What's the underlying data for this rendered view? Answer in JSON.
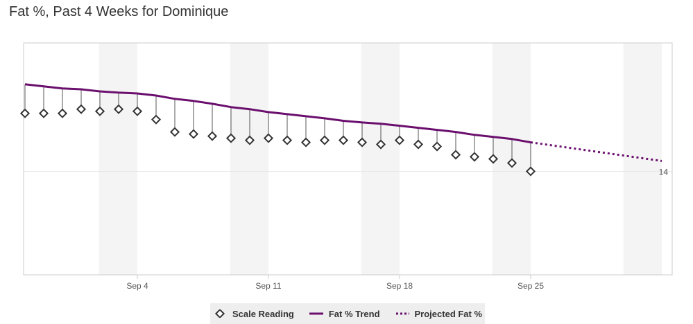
{
  "title": "Fat %, Past 4 Weeks for Dominique",
  "colors": {
    "trend": "#6b0f6e",
    "marker": "#333333",
    "stem": "#555555",
    "weekend_band": "#f4f4f4",
    "gridline": "#e6e6e6",
    "plot_border": "#cccccc"
  },
  "chart_data": {
    "type": "line",
    "x_axis": {
      "type": "date",
      "range": [
        "2023-08-29",
        "2023-10-02"
      ],
      "tick_labels": [
        "Sep 4",
        "Sep 11",
        "Sep 18",
        "Sep 25"
      ],
      "tick_dates": [
        "2023-09-04",
        "2023-09-11",
        "2023-09-18",
        "2023-09-25"
      ]
    },
    "y_axis": {
      "tick_labels": [
        "14"
      ],
      "tick_values": [
        14
      ],
      "range": [
        11.5,
        17.1
      ],
      "side": "right"
    },
    "weekend_bands": [
      [
        "2023-09-02",
        "2023-09-04"
      ],
      [
        "2023-09-09",
        "2023-09-11"
      ],
      [
        "2023-09-16",
        "2023-09-18"
      ],
      [
        "2023-09-23",
        "2023-09-25"
      ],
      [
        "2023-09-30",
        "2023-10-02"
      ]
    ],
    "grid": true,
    "legend_position": "bottom-center",
    "series": [
      {
        "name": "Scale Reading",
        "kind": "marker",
        "marker": "diamond",
        "points": [
          {
            "date": "2023-08-29",
            "value": 15.4
          },
          {
            "date": "2023-08-30",
            "value": 15.4
          },
          {
            "date": "2023-08-31",
            "value": 15.4
          },
          {
            "date": "2023-09-01",
            "value": 15.5
          },
          {
            "date": "2023-09-02",
            "value": 15.45
          },
          {
            "date": "2023-09-03",
            "value": 15.5
          },
          {
            "date": "2023-09-04",
            "value": 15.45
          },
          {
            "date": "2023-09-05",
            "value": 15.25
          },
          {
            "date": "2023-09-06",
            "value": 14.95
          },
          {
            "date": "2023-09-07",
            "value": 14.9
          },
          {
            "date": "2023-09-08",
            "value": 14.85
          },
          {
            "date": "2023-09-09",
            "value": 14.8
          },
          {
            "date": "2023-09-10",
            "value": 14.75
          },
          {
            "date": "2023-09-11",
            "value": 14.8
          },
          {
            "date": "2023-09-12",
            "value": 14.75
          },
          {
            "date": "2023-09-13",
            "value": 14.7
          },
          {
            "date": "2023-09-14",
            "value": 14.75
          },
          {
            "date": "2023-09-15",
            "value": 14.75
          },
          {
            "date": "2023-09-16",
            "value": 14.7
          },
          {
            "date": "2023-09-17",
            "value": 14.65
          },
          {
            "date": "2023-09-18",
            "value": 14.75
          },
          {
            "date": "2023-09-19",
            "value": 14.65
          },
          {
            "date": "2023-09-20",
            "value": 14.6
          },
          {
            "date": "2023-09-21",
            "value": 14.4
          },
          {
            "date": "2023-09-22",
            "value": 14.35
          },
          {
            "date": "2023-09-23",
            "value": 14.3
          },
          {
            "date": "2023-09-24",
            "value": 14.2
          },
          {
            "date": "2023-09-25",
            "value": 14.0
          }
        ]
      },
      {
        "name": "Fat % Trend",
        "kind": "line",
        "style": "solid",
        "points": [
          {
            "date": "2023-08-29",
            "value": 16.1
          },
          {
            "date": "2023-08-30",
            "value": 16.05
          },
          {
            "date": "2023-08-31",
            "value": 16.0
          },
          {
            "date": "2023-09-01",
            "value": 15.98
          },
          {
            "date": "2023-09-02",
            "value": 15.93
          },
          {
            "date": "2023-09-03",
            "value": 15.9
          },
          {
            "date": "2023-09-04",
            "value": 15.88
          },
          {
            "date": "2023-09-05",
            "value": 15.83
          },
          {
            "date": "2023-09-06",
            "value": 15.75
          },
          {
            "date": "2023-09-07",
            "value": 15.7
          },
          {
            "date": "2023-09-08",
            "value": 15.63
          },
          {
            "date": "2023-09-09",
            "value": 15.55
          },
          {
            "date": "2023-09-10",
            "value": 15.5
          },
          {
            "date": "2023-09-11",
            "value": 15.43
          },
          {
            "date": "2023-09-12",
            "value": 15.38
          },
          {
            "date": "2023-09-13",
            "value": 15.33
          },
          {
            "date": "2023-09-14",
            "value": 15.28
          },
          {
            "date": "2023-09-15",
            "value": 15.22
          },
          {
            "date": "2023-09-16",
            "value": 15.18
          },
          {
            "date": "2023-09-17",
            "value": 15.15
          },
          {
            "date": "2023-09-18",
            "value": 15.1
          },
          {
            "date": "2023-09-19",
            "value": 15.05
          },
          {
            "date": "2023-09-20",
            "value": 15.0
          },
          {
            "date": "2023-09-21",
            "value": 14.95
          },
          {
            "date": "2023-09-22",
            "value": 14.88
          },
          {
            "date": "2023-09-23",
            "value": 14.83
          },
          {
            "date": "2023-09-24",
            "value": 14.78
          },
          {
            "date": "2023-09-25",
            "value": 14.7
          }
        ]
      },
      {
        "name": "Projected Fat %",
        "kind": "line",
        "style": "dotted",
        "points": [
          {
            "date": "2023-09-25",
            "value": 14.7
          },
          {
            "date": "2023-10-02",
            "value": 14.25
          }
        ]
      }
    ]
  },
  "legend": {
    "scale_reading": "Scale Reading",
    "trend": "Fat % Trend",
    "projected": "Projected Fat %"
  }
}
